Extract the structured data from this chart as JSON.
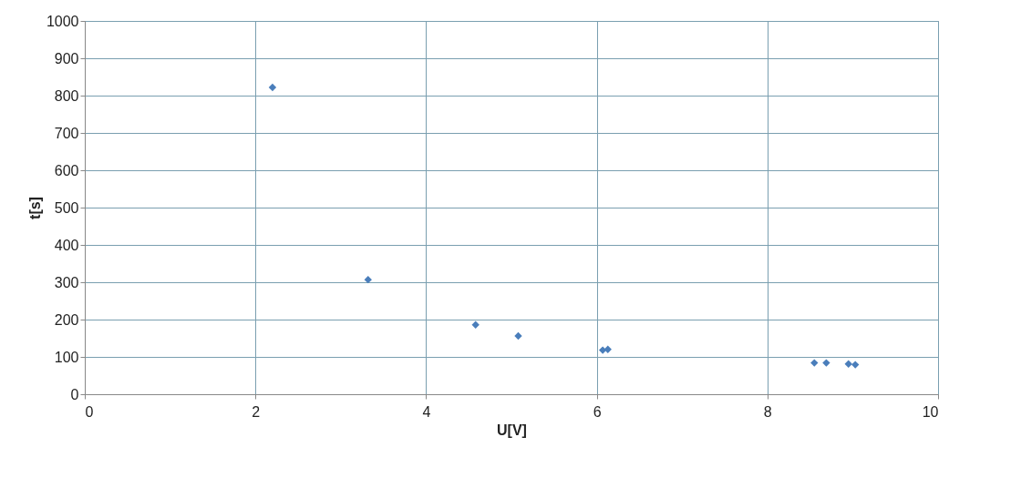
{
  "chart_data": {
    "type": "scatter",
    "xlabel": "U[V]",
    "ylabel": "t[s]",
    "x": [
      2.2,
      3.32,
      4.58,
      5.08,
      6.07,
      6.13,
      8.55,
      8.69,
      8.95,
      9.03
    ],
    "series": [
      {
        "color": "#4a7ebb",
        "values": [
          822,
          307,
          186,
          156,
          118,
          120,
          84,
          84,
          81,
          79
        ]
      }
    ],
    "xlim": [
      0,
      10
    ],
    "xticks": [
      0,
      2,
      4,
      6,
      8,
      10
    ],
    "ylim": [
      0,
      1000
    ],
    "yticks": [
      0,
      100,
      200,
      300,
      400,
      500,
      600,
      700,
      800,
      900,
      1000
    ],
    "grid": true,
    "marker": "diamond",
    "legend": false
  }
}
